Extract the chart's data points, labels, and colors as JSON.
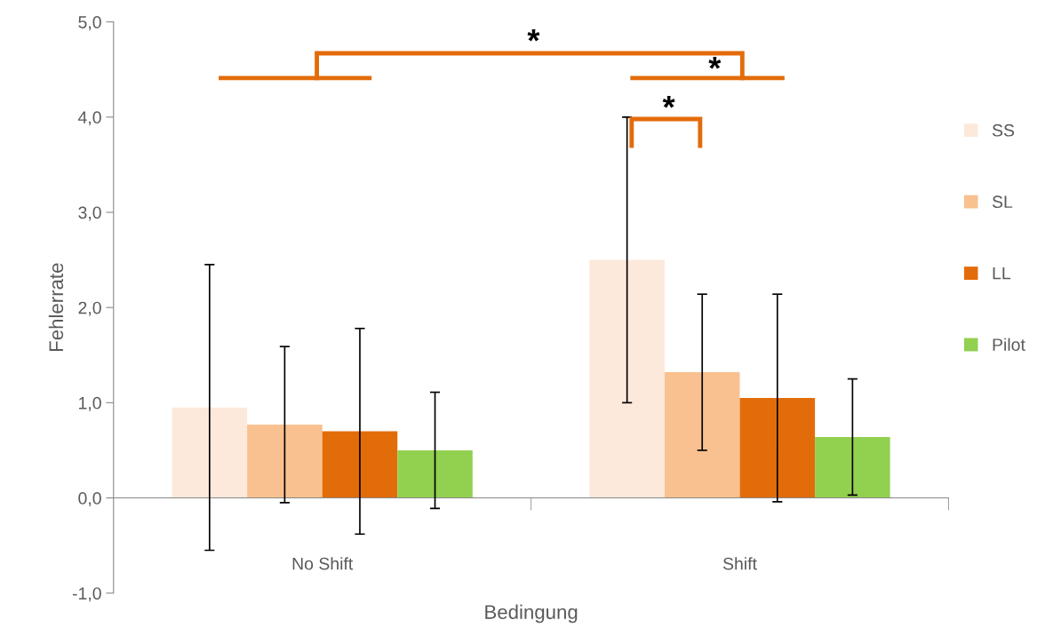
{
  "chart_data": {
    "type": "bar",
    "xlabel": "Bedingung",
    "ylabel": "Fehlerrate",
    "categories": [
      "No Shift",
      "Shift"
    ],
    "series": [
      {
        "name": "SS",
        "color": "#fde9db",
        "values": [
          0.95,
          2.5
        ],
        "errors": [
          1.5,
          1.5
        ]
      },
      {
        "name": "SL",
        "color": "#f9c18f",
        "values": [
          0.77,
          1.32
        ],
        "errors": [
          0.82,
          0.82
        ]
      },
      {
        "name": "LL",
        "color": "#e36c0a",
        "values": [
          0.7,
          1.05
        ],
        "errors": [
          1.08,
          1.09
        ]
      },
      {
        "name": "Pilot",
        "color": "#92d050",
        "values": [
          0.5,
          0.64
        ],
        "errors": [
          0.61,
          0.61
        ]
      }
    ],
    "ylim": [
      -1,
      5
    ],
    "yticks": [
      {
        "value": -1,
        "label": "-1,0"
      },
      {
        "value": 0,
        "label": "0,0"
      },
      {
        "value": 1,
        "label": "1,0"
      },
      {
        "value": 2,
        "label": "2,0"
      },
      {
        "value": 3,
        "label": "3,0"
      },
      {
        "value": 4,
        "label": "4,0"
      },
      {
        "value": 5,
        "label": "5,0"
      }
    ],
    "annotations": [
      "*",
      "*",
      "*"
    ],
    "legend": "right"
  }
}
